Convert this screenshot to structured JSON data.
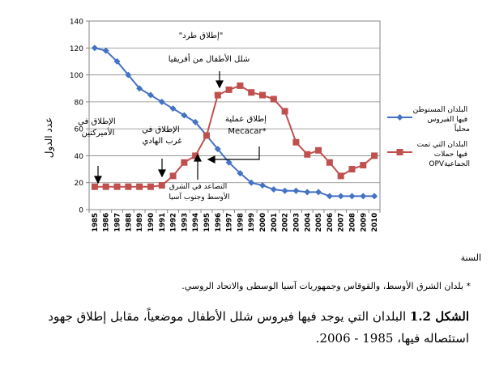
{
  "chart_data": {
    "type": "line",
    "ylabel": "عدد الدول",
    "xlabel": "السنة",
    "ylim": [
      0,
      140
    ],
    "yticks": [
      0,
      20,
      40,
      60,
      80,
      100,
      120,
      140
    ],
    "grid": "horizontal",
    "legend_position": "right",
    "x": [
      1985,
      1986,
      1987,
      1988,
      1989,
      1990,
      1991,
      1992,
      1993,
      1994,
      1995,
      1996,
      1997,
      1998,
      1999,
      2000,
      2001,
      2002,
      2003,
      2004,
      2005,
      2006,
      2007,
      2008,
      2009,
      2010
    ],
    "series": [
      {
        "name": "البلدان المستوطن فيها الفيروس محلياً",
        "color": "#4472C4",
        "marker": "diamond",
        "values": [
          120,
          118,
          110,
          100,
          90,
          85,
          80,
          75,
          70,
          65,
          55,
          45,
          35,
          27,
          20,
          18,
          15,
          14,
          14,
          13,
          13,
          10,
          10,
          10,
          10,
          10
        ]
      },
      {
        "name": "البلدان التي تمت فيها حملات OPV الجماعية",
        "color": "#C0504D",
        "marker": "square",
        "values": [
          17,
          17,
          17,
          17,
          17,
          17,
          18,
          25,
          35,
          40,
          55,
          85,
          89,
          92,
          87,
          85,
          82,
          73,
          50,
          41,
          44,
          35,
          25,
          30,
          33,
          40
        ]
      }
    ],
    "annotations": [
      {
        "id": "ann-americas",
        "lines": [
          "الإطلاق في",
          "الأميركتين"
        ]
      },
      {
        "id": "ann-pacific",
        "lines": [
          "الإطلاق في",
          "غرب الهادي"
        ]
      },
      {
        "id": "ann-escalation",
        "lines": [
          "التصاعد في الشرق",
          "الأوسط وجنوب آسيا"
        ]
      },
      {
        "id": "ann-kick",
        "lines": [
          "\"إطلاق طرد\""
        ]
      },
      {
        "id": "ann-africa",
        "lines": [
          "شلل الأطفال من أفريقيا"
        ]
      },
      {
        "id": "ann-mecacar",
        "lines": [
          "إطلاق عملية",
          "Mecacar*"
        ]
      }
    ]
  },
  "footnote": "* بلدان الشرق الأوسط، والقوقاس وجمهوريات آسيا الوسطى والاتحاد الروسي.",
  "caption": {
    "label": "الشكل 1.2",
    "text": " البلدان التي يوجد فيها فيروس شلل الأطفال موضعياً، مقابل إطلاق جهود استئصاله فيها، 1985 - 2006."
  }
}
